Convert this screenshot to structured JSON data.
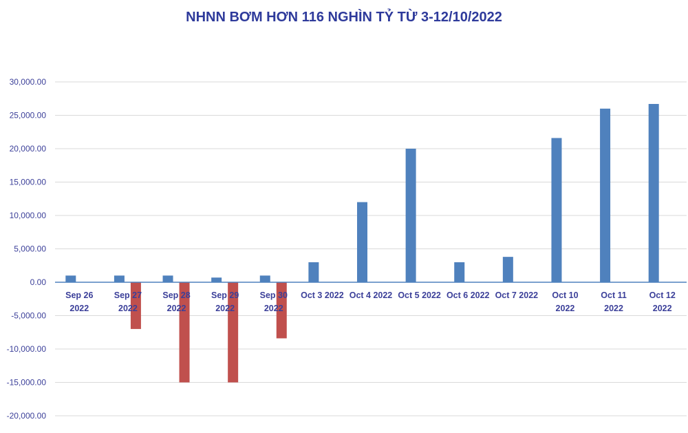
{
  "chart_data": {
    "type": "bar",
    "title": "NHNN BƠM HƠN 116 NGHÌN TỶ TỪ 3-12/10/2022",
    "xlabel": "",
    "ylabel": "",
    "ylim": [
      -20000,
      30000
    ],
    "yticks": [
      30000,
      25000,
      20000,
      15000,
      10000,
      5000,
      0,
      -5000,
      -10000,
      -15000,
      -20000
    ],
    "ytick_labels": [
      "30,000.00",
      "25,000.00",
      "20,000.00",
      "15,000.00",
      "10,000.00",
      "5,000.00",
      "0.00",
      "-5,000.00",
      "-10,000.00",
      "-15,000.00",
      "-20,000.00"
    ],
    "categories": [
      [
        "Sep 26",
        "2022"
      ],
      [
        "Sep 27",
        "2022"
      ],
      [
        "Sep 28",
        "2022"
      ],
      [
        "Sep 29",
        "2022"
      ],
      [
        "Sep 30",
        "2022"
      ],
      [
        "Oct 3 2022"
      ],
      [
        "Oct 4 2022"
      ],
      [
        "Oct 5 2022"
      ],
      [
        "Oct 6 2022"
      ],
      [
        "Oct 7 2022"
      ],
      [
        "Oct 10",
        "2022"
      ],
      [
        "Oct 11",
        "2022"
      ],
      [
        "Oct 12",
        "2022"
      ]
    ],
    "series": [
      {
        "color": "#4f81bd",
        "values": [
          1000,
          1000,
          1000,
          700,
          1000,
          3000,
          12000,
          20000,
          3000,
          3800,
          21600,
          26000,
          26700
        ]
      },
      {
        "color": "#c0504d",
        "values": [
          0,
          -7000,
          -15000,
          -15000,
          -8400,
          0,
          0,
          0,
          0,
          0,
          0,
          0,
          0
        ]
      }
    ],
    "grid": true,
    "legend": "none"
  }
}
